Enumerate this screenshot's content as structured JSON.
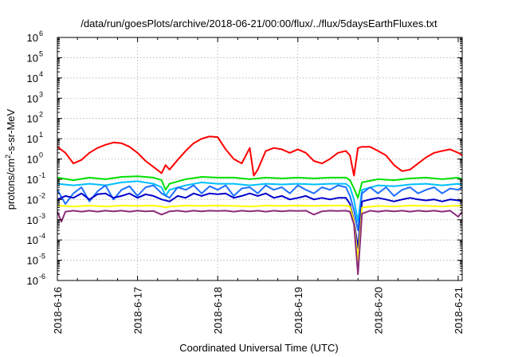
{
  "chart_data": {
    "type": "line",
    "title": "/data/run/goesPlots/archive/2018-06-21/00:00/flux/../flux/5daysEarthFluxes.txt",
    "xlabel": "Coordinated Universal Time (UTC)",
    "ylabel": {
      "base": "protons/cm",
      "sup": "2",
      "rest": "-s-sr-MeV"
    },
    "xlim": [
      0,
      5.05
    ],
    "ylim": [
      1e-06,
      1000000.0
    ],
    "yscale": "log",
    "grid": true,
    "x_ticks": [
      {
        "x": 0,
        "label": "2018-6-16"
      },
      {
        "x": 1,
        "label": "2018-6-17"
      },
      {
        "x": 2,
        "label": "2018-6-18"
      },
      {
        "x": 3,
        "label": "2018-6-19"
      },
      {
        "x": 4,
        "label": "2018-6-20"
      },
      {
        "x": 5,
        "label": "2018-6-21"
      }
    ],
    "y_ticks": [
      {
        "exp": -6,
        "base": "10",
        "sup": "-6"
      },
      {
        "exp": -5,
        "base": "10",
        "sup": "-5"
      },
      {
        "exp": -4,
        "base": "10",
        "sup": "-4"
      },
      {
        "exp": -3,
        "base": "10",
        "sup": "-3"
      },
      {
        "exp": -2,
        "base": "10",
        "sup": "-2"
      },
      {
        "exp": -1,
        "base": "10",
        "sup": "-1"
      },
      {
        "exp": 0,
        "base": "10",
        "sup": "0"
      },
      {
        "exp": 1,
        "base": "10",
        "sup": "1"
      },
      {
        "exp": 2,
        "base": "10",
        "sup": "2"
      },
      {
        "exp": 3,
        "base": "10",
        "sup": "3"
      },
      {
        "exp": 4,
        "base": "10",
        "sup": "4"
      },
      {
        "exp": 5,
        "base": "10",
        "sup": "5"
      },
      {
        "exp": 6,
        "base": "10",
        "sup": "6"
      }
    ],
    "series": [
      {
        "color": "#ff0000",
        "x": [
          0,
          0.1,
          0.2,
          0.3,
          0.4,
          0.5,
          0.6,
          0.7,
          0.8,
          0.9,
          1.0,
          1.1,
          1.2,
          1.3,
          1.35,
          1.4,
          1.5,
          1.6,
          1.7,
          1.8,
          1.9,
          2.0,
          2.1,
          2.2,
          2.3,
          2.4,
          2.45,
          2.5,
          2.6,
          2.7,
          2.8,
          2.9,
          3.0,
          3.1,
          3.2,
          3.3,
          3.4,
          3.5,
          3.6,
          3.65,
          3.7,
          3.75,
          3.8,
          3.9,
          4.0,
          4.1,
          4.2,
          4.3,
          4.4,
          4.5,
          4.6,
          4.7,
          4.8,
          4.9,
          5.0,
          5.05
        ],
        "y": [
          4,
          2,
          0.6,
          0.9,
          2,
          3.5,
          5,
          6.5,
          6,
          4,
          2,
          0.8,
          0.4,
          0.2,
          0.5,
          0.3,
          0.9,
          2.5,
          6,
          10,
          13,
          12,
          3,
          1,
          0.6,
          3.5,
          0.15,
          0.3,
          2.5,
          3.5,
          3,
          2,
          3,
          2,
          0.8,
          0.6,
          1,
          2,
          2.5,
          1.5,
          0.15,
          3.5,
          4,
          4,
          2.5,
          1.5,
          0.5,
          0.25,
          0.3,
          0.6,
          1.2,
          2,
          2.5,
          3,
          2,
          1.5
        ]
      },
      {
        "color": "#00e000",
        "x": [
          0,
          0.2,
          0.4,
          0.6,
          0.8,
          1.0,
          1.2,
          1.3,
          1.35,
          1.4,
          1.6,
          1.8,
          2.0,
          2.2,
          2.4,
          2.6,
          2.8,
          3.0,
          3.2,
          3.4,
          3.6,
          3.65,
          3.7,
          3.75,
          3.8,
          4.0,
          4.2,
          4.4,
          4.6,
          4.8,
          5.0,
          5.05
        ],
        "y": [
          0.12,
          0.09,
          0.12,
          0.1,
          0.13,
          0.14,
          0.12,
          0.09,
          0.03,
          0.06,
          0.1,
          0.13,
          0.12,
          0.12,
          0.1,
          0.12,
          0.11,
          0.12,
          0.11,
          0.12,
          0.12,
          0.09,
          0.035,
          0.012,
          0.07,
          0.1,
          0.09,
          0.11,
          0.12,
          0.1,
          0.12,
          0.1
        ]
      },
      {
        "color": "#00bfff",
        "x": [
          0,
          0.2,
          0.4,
          0.6,
          0.8,
          1.0,
          1.2,
          1.3,
          1.35,
          1.4,
          1.6,
          1.8,
          2.0,
          2.2,
          2.4,
          2.6,
          2.8,
          3.0,
          3.2,
          3.4,
          3.6,
          3.65,
          3.7,
          3.75,
          3.8,
          4.0,
          4.2,
          4.4,
          4.6,
          4.8,
          5.0,
          5.05
        ],
        "y": [
          0.06,
          0.05,
          0.06,
          0.05,
          0.07,
          0.08,
          0.06,
          0.04,
          0.015,
          0.03,
          0.05,
          0.07,
          0.06,
          0.06,
          0.05,
          0.06,
          0.055,
          0.06,
          0.055,
          0.06,
          0.06,
          0.04,
          0.01,
          0.0008,
          0.03,
          0.05,
          0.045,
          0.055,
          0.06,
          0.05,
          0.06,
          0.05
        ]
      },
      {
        "color": "#1e6fff",
        "x": [
          0,
          0.1,
          0.2,
          0.3,
          0.4,
          0.5,
          0.6,
          0.7,
          0.8,
          0.9,
          1.0,
          1.1,
          1.2,
          1.3,
          1.4,
          1.5,
          1.6,
          1.7,
          1.8,
          1.9,
          2.0,
          2.1,
          2.2,
          2.3,
          2.4,
          2.5,
          2.6,
          2.7,
          2.8,
          2.9,
          3.0,
          3.1,
          3.2,
          3.3,
          3.4,
          3.5,
          3.6,
          3.65,
          3.7,
          3.75,
          3.8,
          3.9,
          4.0,
          4.1,
          4.2,
          4.3,
          4.4,
          4.5,
          4.6,
          4.7,
          4.8,
          4.9,
          5.0,
          5.05
        ],
        "y": [
          0.03,
          0.006,
          0.02,
          0.04,
          0.008,
          0.025,
          0.05,
          0.01,
          0.03,
          0.045,
          0.015,
          0.04,
          0.05,
          0.02,
          0.012,
          0.04,
          0.03,
          0.05,
          0.02,
          0.045,
          0.03,
          0.05,
          0.015,
          0.035,
          0.04,
          0.02,
          0.05,
          0.03,
          0.04,
          0.02,
          0.05,
          0.03,
          0.02,
          0.04,
          0.03,
          0.05,
          0.04,
          0.015,
          0.003,
          0.0003,
          0.02,
          0.04,
          0.02,
          0.04,
          0.015,
          0.03,
          0.04,
          0.02,
          0.03,
          0.04,
          0.02,
          0.035,
          0.03,
          0.04
        ]
      },
      {
        "color": "#0000cc",
        "x": [
          0,
          0.1,
          0.2,
          0.3,
          0.4,
          0.5,
          0.6,
          0.7,
          0.8,
          0.9,
          1.0,
          1.1,
          1.2,
          1.3,
          1.4,
          1.5,
          1.6,
          1.7,
          1.8,
          1.9,
          2.0,
          2.1,
          2.2,
          2.3,
          2.4,
          2.5,
          2.6,
          2.7,
          2.8,
          2.9,
          3.0,
          3.1,
          3.2,
          3.3,
          3.4,
          3.5,
          3.6,
          3.65,
          3.7,
          3.75,
          3.8,
          3.9,
          4.0,
          4.1,
          4.2,
          4.3,
          4.4,
          4.5,
          4.6,
          4.7,
          4.8,
          4.9,
          5.0,
          5.05
        ],
        "y": [
          0.01,
          0.015,
          0.012,
          0.02,
          0.01,
          0.018,
          0.02,
          0.012,
          0.015,
          0.02,
          0.012,
          0.018,
          0.015,
          0.01,
          0.008,
          0.015,
          0.012,
          0.02,
          0.015,
          0.02,
          0.018,
          0.02,
          0.012,
          0.015,
          0.02,
          0.015,
          0.02,
          0.012,
          0.015,
          0.01,
          0.012,
          0.015,
          0.01,
          0.012,
          0.01,
          0.012,
          0.012,
          0.006,
          0.0009,
          4e-05,
          0.008,
          0.01,
          0.012,
          0.01,
          0.008,
          0.01,
          0.012,
          0.01,
          0.009,
          0.01,
          0.008,
          0.01,
          0.009,
          0.008
        ]
      },
      {
        "color": "#ffff00",
        "x": [
          0,
          0.2,
          0.4,
          0.6,
          0.8,
          1.0,
          1.2,
          1.3,
          1.35,
          1.4,
          1.6,
          1.8,
          2.0,
          2.2,
          2.4,
          2.6,
          2.8,
          3.0,
          3.2,
          3.4,
          3.6,
          3.65,
          3.7,
          3.75,
          3.8,
          4.0,
          4.2,
          4.4,
          4.6,
          4.8,
          5.0,
          5.05
        ],
        "y": [
          0.005,
          0.0045,
          0.005,
          0.0045,
          0.005,
          0.0048,
          0.005,
          0.0045,
          0.004,
          0.0045,
          0.005,
          0.0048,
          0.005,
          0.0048,
          0.0045,
          0.005,
          0.0048,
          0.005,
          0.0048,
          0.005,
          0.005,
          0.0045,
          0.0008,
          1e-05,
          0.004,
          0.0048,
          0.0045,
          0.005,
          0.0048,
          0.0045,
          0.005,
          0.0048
        ]
      },
      {
        "color": "#8b2c7a",
        "x": [
          0,
          0.05,
          0.1,
          0.2,
          0.3,
          0.4,
          0.5,
          0.6,
          0.7,
          0.8,
          0.9,
          1.0,
          1.1,
          1.2,
          1.3,
          1.4,
          1.5,
          1.6,
          1.7,
          1.8,
          1.9,
          2.0,
          2.1,
          2.2,
          2.3,
          2.4,
          2.5,
          2.6,
          2.7,
          2.8,
          2.9,
          3.0,
          3.1,
          3.2,
          3.3,
          3.4,
          3.5,
          3.6,
          3.65,
          3.7,
          3.75,
          3.8,
          3.9,
          4.0,
          4.1,
          4.2,
          4.3,
          4.4,
          4.5,
          4.6,
          4.7,
          4.8,
          4.9,
          5.0,
          5.05
        ],
        "y": [
          0.0025,
          0.0008,
          0.0025,
          0.0028,
          0.0025,
          0.0028,
          0.0025,
          0.0028,
          0.0026,
          0.0028,
          0.0025,
          0.0028,
          0.0026,
          0.0027,
          0.0018,
          0.0026,
          0.0028,
          0.0025,
          0.0028,
          0.0026,
          0.0028,
          0.0027,
          0.0028,
          0.0025,
          0.0028,
          0.0026,
          0.0028,
          0.0025,
          0.0028,
          0.0026,
          0.0028,
          0.0027,
          0.0028,
          0.0018,
          0.0026,
          0.0028,
          0.0027,
          0.0028,
          0.0025,
          0.0006,
          2e-06,
          0.002,
          0.0028,
          0.0025,
          0.0028,
          0.0026,
          0.0028,
          0.0025,
          0.0028,
          0.0026,
          0.0028,
          0.0025,
          0.0028,
          0.0014,
          0.0025
        ]
      }
    ]
  }
}
